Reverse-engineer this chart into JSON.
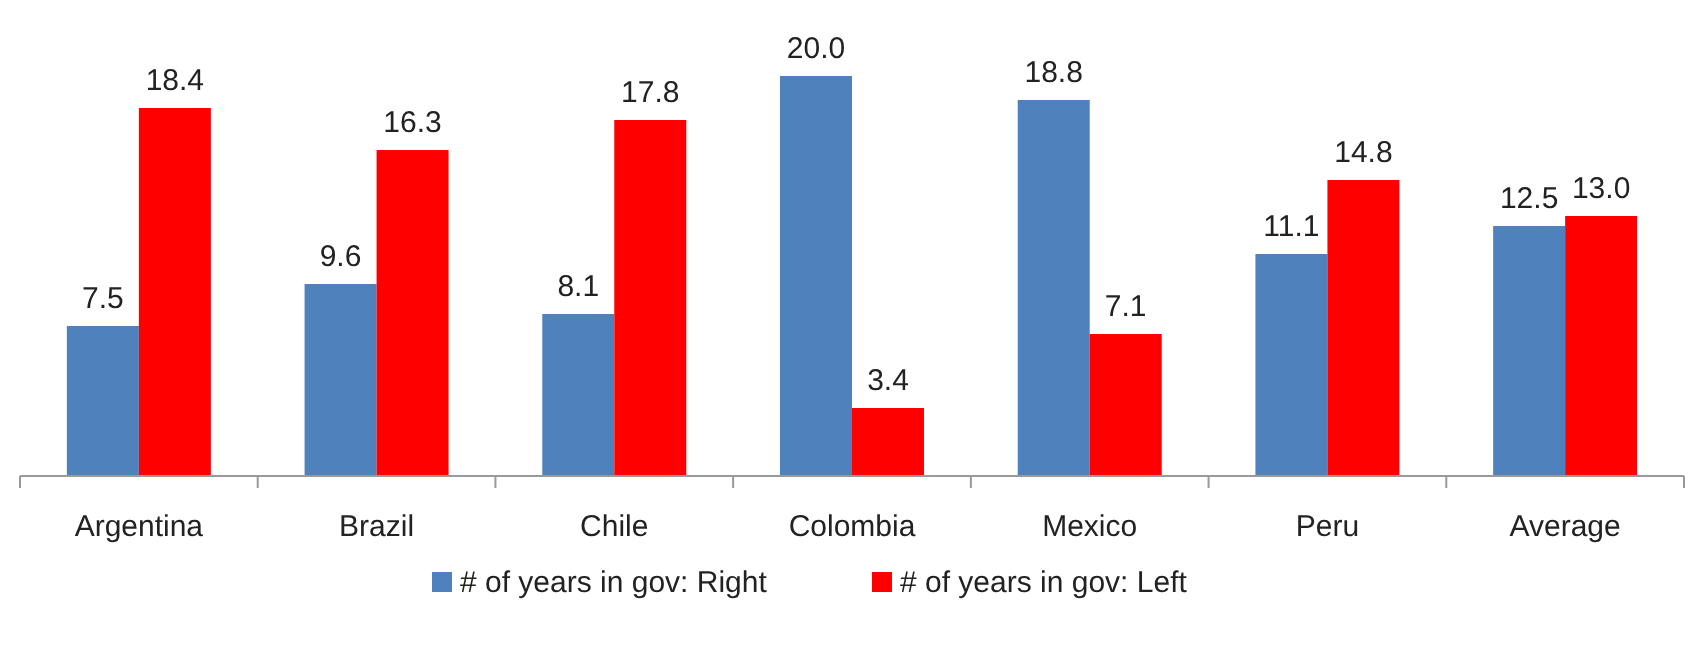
{
  "chart_data": {
    "type": "bar",
    "categories": [
      "Argentina",
      "Brazil",
      "Chile",
      "Colombia",
      "Mexico",
      "Peru",
      "Average"
    ],
    "series": [
      {
        "name": "# of years in gov: Right",
        "color": "#4f81bd",
        "values": [
          7.5,
          9.6,
          8.1,
          20,
          18.8,
          11.1,
          12.5
        ],
        "value_labels": [
          "7.5",
          "9.6",
          "8.1",
          "20.0",
          "18.8",
          "11.1",
          "12.5"
        ]
      },
      {
        "name": "# of years in gov: Left",
        "color": "#ff0000",
        "values": [
          18.4,
          16.3,
          17.8,
          3.4,
          7.1,
          14.8,
          13
        ],
        "value_labels": [
          "18.4",
          "16.3",
          "17.8",
          "3.4",
          "7.1",
          "14.8",
          "13.0"
        ]
      }
    ],
    "legend": "bottom",
    "grid": false
  }
}
